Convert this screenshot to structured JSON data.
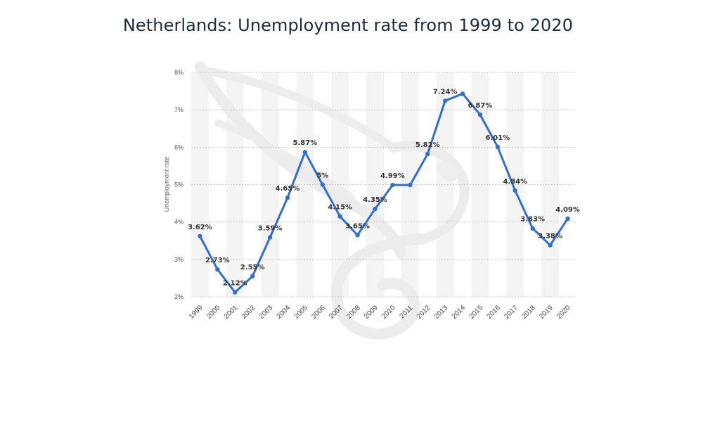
{
  "page": {
    "title": "Netherlands: Unemployment rate from 1999 to 2020"
  },
  "chart_data": {
    "type": "line",
    "title": "Netherlands: Unemployment rate from 1999 to 2020",
    "xlabel": "",
    "ylabel": "Unemployment rate",
    "ylim": [
      2,
      8
    ],
    "yticks": [
      "2%",
      "3%",
      "4%",
      "5%",
      "6%",
      "7%",
      "8%"
    ],
    "grid": true,
    "line_color": "#2f6fd0",
    "categories": [
      "1999",
      "2000",
      "2001",
      "2002",
      "2003",
      "2004",
      "2005",
      "2006",
      "2007",
      "2008",
      "2009",
      "2010",
      "2011",
      "2012",
      "2013",
      "2014",
      "2015",
      "2016",
      "2017",
      "2018",
      "2019",
      "2020"
    ],
    "series": [
      {
        "values": [
          3.62,
          2.73,
          2.12,
          2.55,
          3.59,
          4.65,
          5.87,
          5,
          4.15,
          3.65,
          4.35,
          4.99,
          4.99,
          5.82,
          7.24,
          7.43,
          6.87,
          6.01,
          4.84,
          3.83,
          3.38,
          4.09
        ],
        "labels": [
          "3.62%",
          "2.73%",
          "2.12%",
          "2.55%",
          "3.59%",
          "4.65%",
          "5.87%",
          "5%",
          "4.15%",
          "3.65%",
          "4.35%",
          "4.99%",
          "",
          "5.82%",
          "7.24%",
          "",
          "6.87%",
          "6.01%",
          "4.84%",
          "3.83%",
          "3.38%",
          "4.09%"
        ]
      }
    ]
  }
}
